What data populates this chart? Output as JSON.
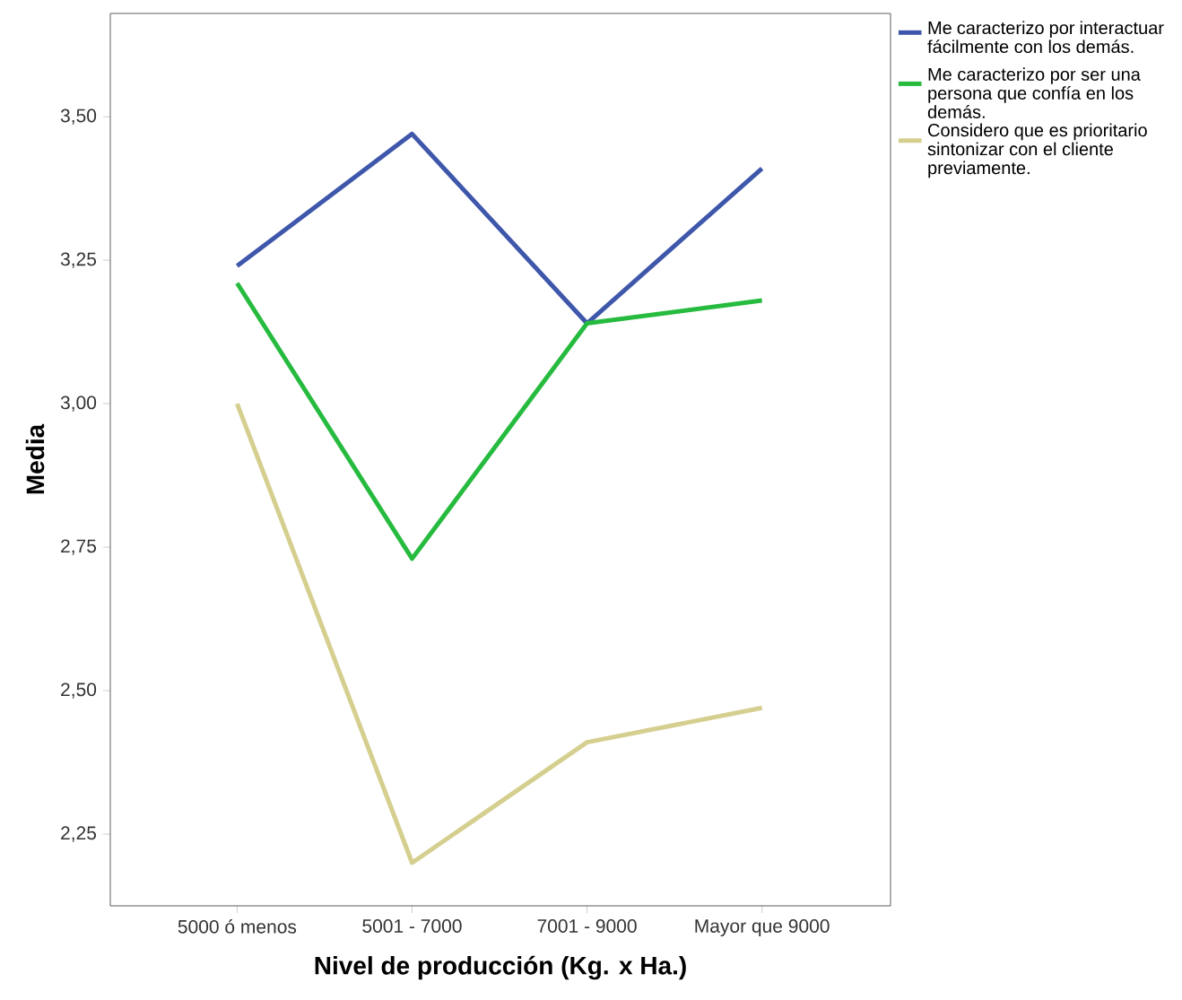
{
  "chart_data": {
    "type": "line",
    "xlabel": "Nivel de producción (Kg. x Ha.)",
    "ylabel": "Media",
    "categories": [
      "5000 ó menos",
      "5001 - 7000",
      "7001 - 9000",
      "Mayor que 9000"
    ],
    "series": [
      {
        "name": "Me caracterizo por interactuar fácilmente con los demás.",
        "color": "#3e57ab",
        "values": [
          3.24,
          3.47,
          3.14,
          3.41
        ]
      },
      {
        "name": "Me caracterizo por ser una persona que confía en los demás.",
        "color": "#26bb3f",
        "values": [
          3.21,
          2.73,
          3.14,
          3.18
        ]
      },
      {
        "name": "Considero que es prioritario sintonizar con el cliente previamente.",
        "color": "#d5cf8f",
        "values": [
          3.0,
          2.2,
          2.41,
          2.47
        ]
      }
    ],
    "ylim": [
      2.125,
      3.68
    ],
    "yticks": [
      {
        "value": 2.25,
        "label": "2,25"
      },
      {
        "value": 2.5,
        "label": "2,50"
      },
      {
        "value": 2.75,
        "label": "2,75"
      },
      {
        "value": 3.0,
        "label": "3,00"
      },
      {
        "value": 3.25,
        "label": "3,25"
      },
      {
        "value": 3.5,
        "label": "3,50"
      }
    ],
    "legend": "top right",
    "grid": false,
    "marker": "none",
    "line_style": "solid"
  }
}
